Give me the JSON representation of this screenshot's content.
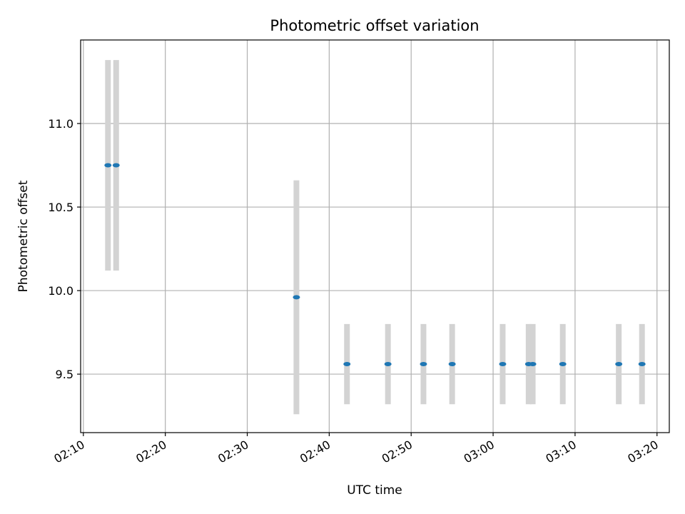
{
  "chart_data": {
    "type": "scatter",
    "title": "Photometric offset variation",
    "xlabel": "UTC time",
    "ylabel": "Photometric offset",
    "x_ticks": [
      "02:10",
      "02:20",
      "02:30",
      "02:40",
      "02:50",
      "03:00",
      "03:10",
      "03:20"
    ],
    "y_ticks": [
      9.5,
      10.0,
      10.5,
      11.0
    ],
    "xlim": [
      "02:09:40",
      "03:21:30"
    ],
    "ylim": [
      9.15,
      11.5
    ],
    "grid": true,
    "points": [
      {
        "x": "02:13:00",
        "y": 10.75,
        "yerr": 0.63
      },
      {
        "x": "02:14:00",
        "y": 10.75,
        "yerr": 0.63
      },
      {
        "x": "02:36:00",
        "y": 9.96,
        "yerr": 0.7
      },
      {
        "x": "02:42:10",
        "y": 9.56,
        "yerr": 0.24
      },
      {
        "x": "02:47:10",
        "y": 9.56,
        "yerr": 0.24
      },
      {
        "x": "02:51:30",
        "y": 9.56,
        "yerr": 0.24
      },
      {
        "x": "02:55:00",
        "y": 9.56,
        "yerr": 0.24
      },
      {
        "x": "03:01:10",
        "y": 9.56,
        "yerr": 0.24
      },
      {
        "x": "03:04:20",
        "y": 9.56,
        "yerr": 0.24
      },
      {
        "x": "03:04:50",
        "y": 9.56,
        "yerr": 0.24
      },
      {
        "x": "03:08:30",
        "y": 9.56,
        "yerr": 0.24
      },
      {
        "x": "03:15:20",
        "y": 9.56,
        "yerr": 0.24
      },
      {
        "x": "03:18:10",
        "y": 9.56,
        "yerr": 0.24
      }
    ],
    "colors": {
      "marker": "#1f77b4",
      "errorbar": "#d3d3d3",
      "grid": "#b0b0b0",
      "axes": "#000000"
    }
  }
}
